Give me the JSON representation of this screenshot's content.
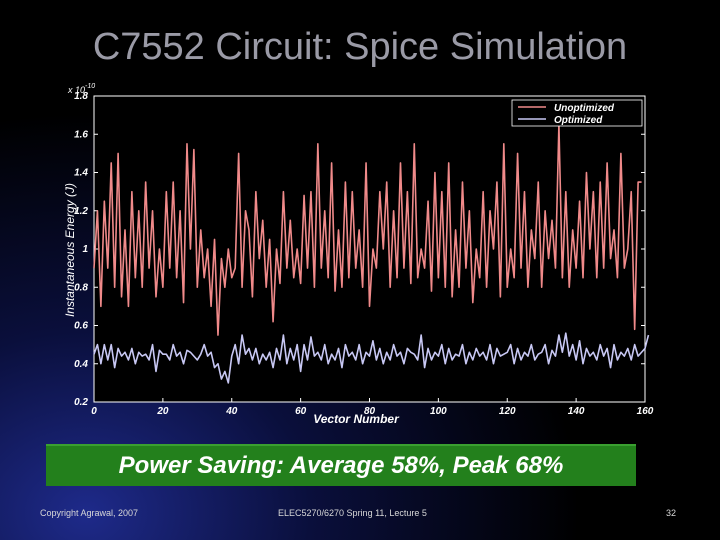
{
  "slide": {
    "title": "C7552 Circuit: Spice Simulation",
    "banner": "Power Saving: Average 58%, Peak 68%",
    "footer_left": "Copyright Agrawal, 2007",
    "footer_center": "ELEC5270/6270 Spring 11, Lecture 5",
    "page_number": "32"
  },
  "chart_data": {
    "type": "line",
    "xlabel": "Vector Number",
    "ylabel": "Instantaneous Energy (J)",
    "y_multiplier": "x 10",
    "y_exponent": "-10",
    "xlim": [
      0,
      160
    ],
    "ylim": [
      0.2,
      1.8
    ],
    "xticks": [
      "0",
      "20",
      "40",
      "60",
      "80",
      "100",
      "120",
      "140",
      "160"
    ],
    "yticks": [
      "0.2",
      "0.4",
      "0.6",
      "0.8",
      "1",
      "1.2",
      "1.4",
      "1.6",
      "1.8"
    ],
    "legend_position": "top-right",
    "grid": false,
    "series": [
      {
        "name": "Unoptimized",
        "color": "#f08a8a",
        "values": [
          0.9,
          1.2,
          0.7,
          1.25,
          0.9,
          1.45,
          0.8,
          1.5,
          0.75,
          1.1,
          0.7,
          1.3,
          0.85,
          1.2,
          0.8,
          1.35,
          0.9,
          1.2,
          0.75,
          1.0,
          0.8,
          1.3,
          0.9,
          1.35,
          0.85,
          1.2,
          0.72,
          1.55,
          1.0,
          1.52,
          0.8,
          1.1,
          0.85,
          1.0,
          0.7,
          1.05,
          0.55,
          0.95,
          0.8,
          1.0,
          0.85,
          0.9,
          1.5,
          0.8,
          1.2,
          1.1,
          0.75,
          1.3,
          0.95,
          1.15,
          0.8,
          1.05,
          0.62,
          1.0,
          0.82,
          1.3,
          0.9,
          1.15,
          0.85,
          1.0,
          0.82,
          1.28,
          0.9,
          1.3,
          0.8,
          1.55,
          0.9,
          1.2,
          0.85,
          1.45,
          0.78,
          1.1,
          0.8,
          1.35,
          0.85,
          1.3,
          0.9,
          1.1,
          0.8,
          1.45,
          0.7,
          1.0,
          0.9,
          1.3,
          1.0,
          1.35,
          0.8,
          1.2,
          0.85,
          1.45,
          0.9,
          1.3,
          0.82,
          1.55,
          0.85,
          1.0,
          0.9,
          1.25,
          0.78,
          1.4,
          0.85,
          1.3,
          0.8,
          1.45,
          0.75,
          1.1,
          0.8,
          1.35,
          0.9,
          1.2,
          0.72,
          1.0,
          0.85,
          1.3,
          0.8,
          1.2,
          1.0,
          1.35,
          0.75,
          1.55,
          0.8,
          1.0,
          0.85,
          1.5,
          0.9,
          1.3,
          0.8,
          1.1,
          0.95,
          1.35,
          0.8,
          1.2,
          0.95,
          1.15,
          0.9,
          1.65,
          0.85,
          1.3,
          0.8,
          1.1,
          0.9,
          1.25,
          0.85,
          1.4,
          1.0,
          1.3,
          0.85,
          1.35,
          0.9,
          1.45,
          0.95,
          1.1,
          0.85,
          1.5,
          0.9,
          1.0,
          1.3,
          0.58,
          1.35,
          1.35
        ]
      },
      {
        "name": "Optimized",
        "color": "#c8c8f4",
        "values": [
          0.45,
          0.5,
          0.4,
          0.5,
          0.42,
          0.5,
          0.38,
          0.48,
          0.44,
          0.46,
          0.42,
          0.48,
          0.4,
          0.46,
          0.44,
          0.45,
          0.42,
          0.5,
          0.36,
          0.47,
          0.45,
          0.45,
          0.42,
          0.5,
          0.44,
          0.46,
          0.4,
          0.47,
          0.46,
          0.44,
          0.42,
          0.45,
          0.5,
          0.44,
          0.46,
          0.38,
          0.4,
          0.32,
          0.36,
          0.3,
          0.44,
          0.5,
          0.4,
          0.55,
          0.45,
          0.48,
          0.42,
          0.48,
          0.4,
          0.45,
          0.42,
          0.46,
          0.38,
          0.48,
          0.42,
          0.55,
          0.4,
          0.48,
          0.42,
          0.5,
          0.36,
          0.5,
          0.42,
          0.54,
          0.44,
          0.46,
          0.42,
          0.5,
          0.4,
          0.45,
          0.42,
          0.48,
          0.38,
          0.5,
          0.44,
          0.46,
          0.42,
          0.5,
          0.4,
          0.46,
          0.44,
          0.52,
          0.42,
          0.48,
          0.4,
          0.46,
          0.42,
          0.5,
          0.44,
          0.46,
          0.4,
          0.48,
          0.46,
          0.45,
          0.42,
          0.55,
          0.38,
          0.48,
          0.42,
          0.46,
          0.44,
          0.5,
          0.4,
          0.48,
          0.42,
          0.45,
          0.44,
          0.5,
          0.4,
          0.46,
          0.42,
          0.48,
          0.44,
          0.46,
          0.42,
          0.5,
          0.4,
          0.48,
          0.44,
          0.45,
          0.46,
          0.5,
          0.4,
          0.48,
          0.42,
          0.46,
          0.44,
          0.5,
          0.42,
          0.45,
          0.46,
          0.5,
          0.4,
          0.47,
          0.44,
          0.55,
          0.46,
          0.56,
          0.44,
          0.5,
          0.42,
          0.52,
          0.4,
          0.48,
          0.44,
          0.46,
          0.42,
          0.5,
          0.44,
          0.48,
          0.38,
          0.5,
          0.42,
          0.46,
          0.44,
          0.48,
          0.42,
          0.5,
          0.44,
          0.46,
          0.48,
          0.55
        ]
      }
    ]
  }
}
